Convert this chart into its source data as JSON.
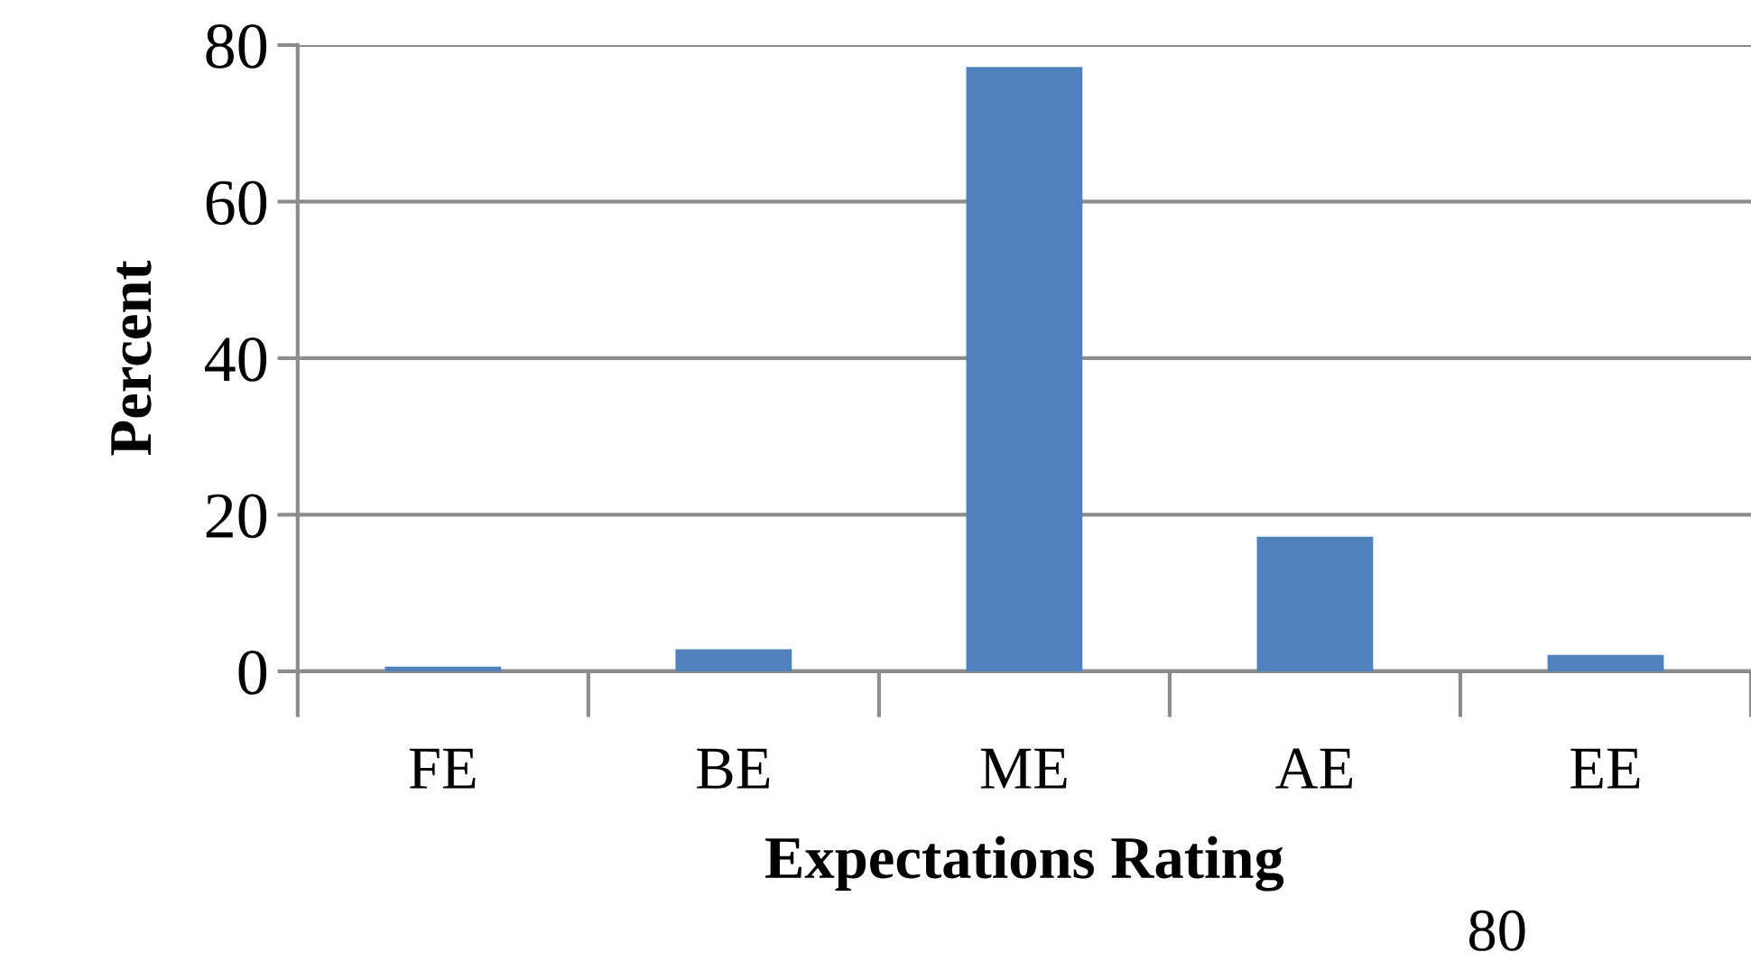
{
  "chart_data": {
    "type": "bar",
    "xlabel": "Expectations Rating",
    "ylabel": "Percent",
    "categories": [
      "FE",
      "BE",
      "ME",
      "AE",
      "EE"
    ],
    "values": [
      0.6,
      2.8,
      77.2,
      17.2,
      2.1
    ],
    "color": "#4f81bd",
    "ylim": [
      0,
      80
    ],
    "yticks": [
      0,
      20,
      40,
      60,
      80
    ],
    "grid": "y",
    "annotations": [
      "80"
    ]
  }
}
